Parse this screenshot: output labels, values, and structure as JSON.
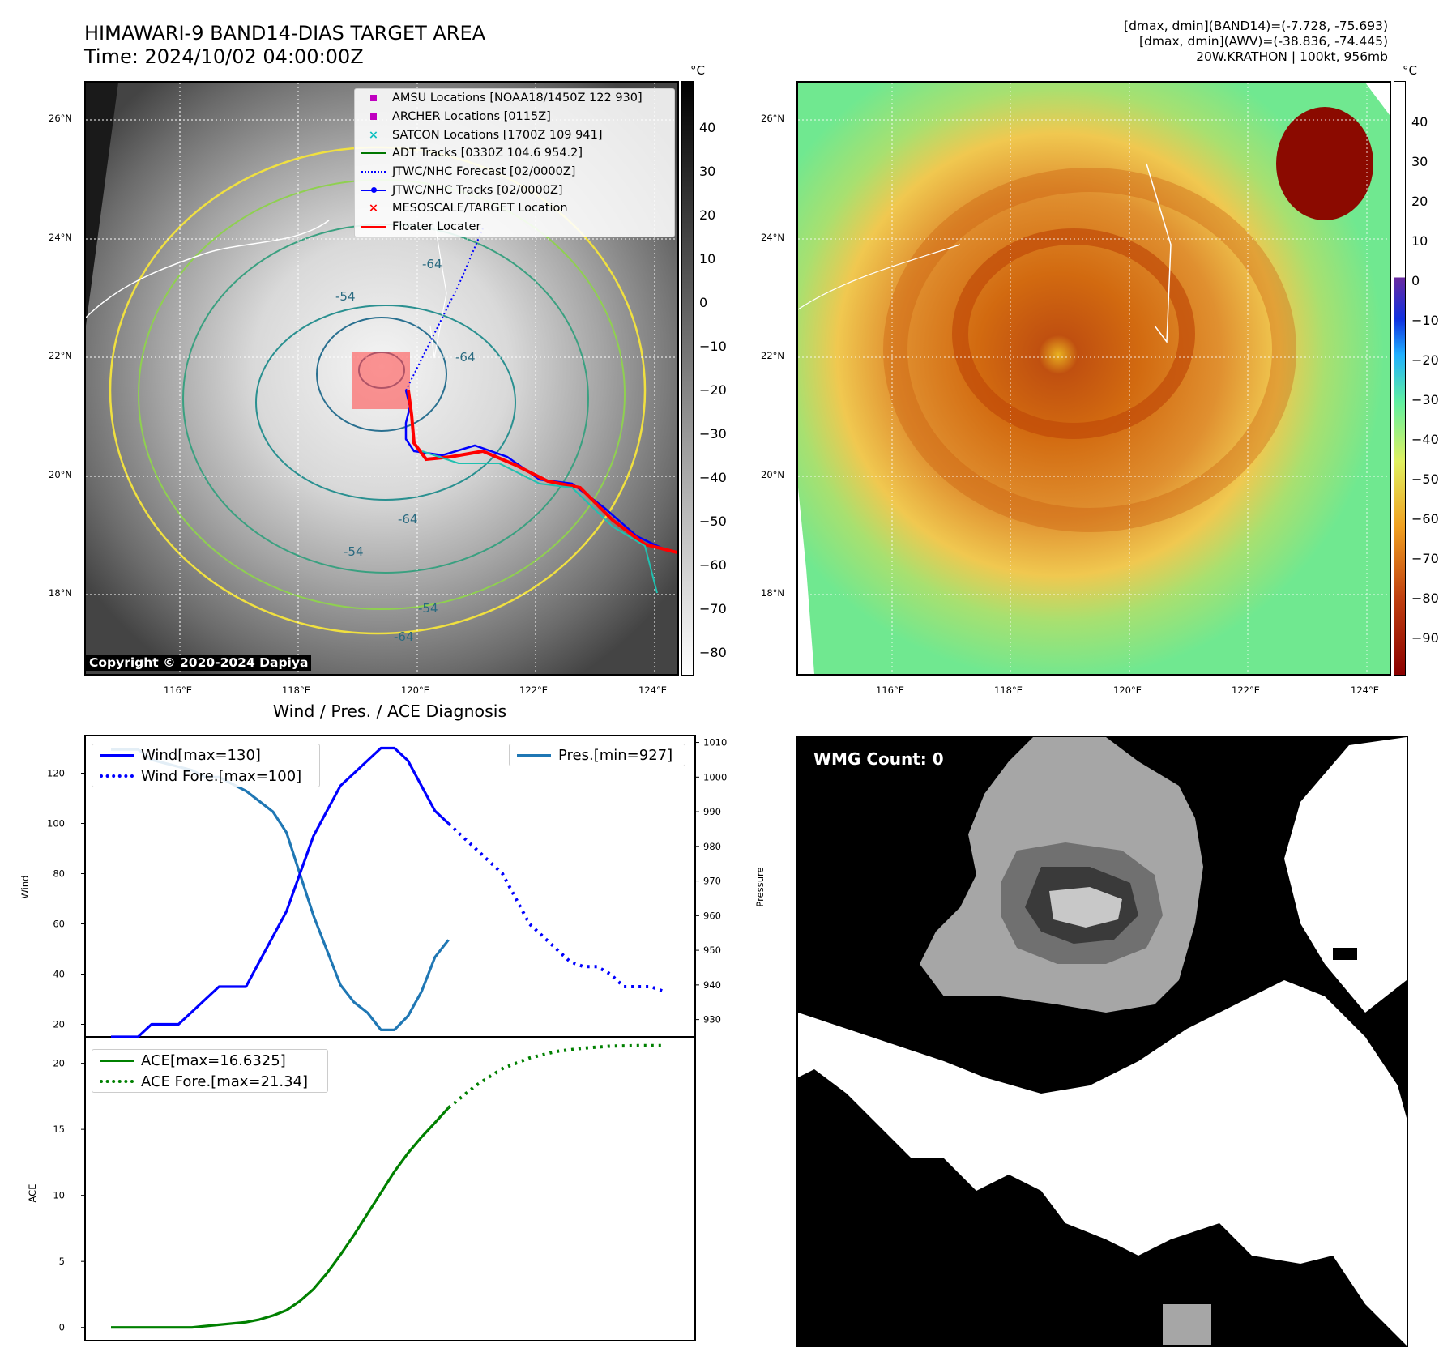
{
  "header": {
    "title_line1": "HIMAWARI-9 BAND14-DIAS TARGET AREA",
    "title_line2": "Time: 2024/10/02 04:00:00Z",
    "info_line1": "[dmax, dmin](BAND14)=(-7.728, -75.693)",
    "info_line2": "[dmax, dmin](AWV)=(-38.836, -74.445)",
    "info_line3": "20W.KRATHON | 100kt, 956mb"
  },
  "map": {
    "lat_labels": [
      "26°N",
      "24°N",
      "22°N",
      "20°N",
      "18°N"
    ],
    "lon_labels": [
      "116°E",
      "118°E",
      "120°E",
      "122°E",
      "124°E"
    ],
    "contour_labels": [
      "-64",
      "-54",
      "-64",
      "-64",
      "-54",
      "-54",
      "-64"
    ],
    "copyright": "Copyright © 2020-2024 Dapiya",
    "legend": [
      {
        "label": "AMSU Locations [NOAA18/1450Z 122 930]",
        "symbol": "square",
        "color": "#c000c0"
      },
      {
        "label": "ARCHER Locations [0115Z]",
        "symbol": "square",
        "color": "#c000c0"
      },
      {
        "label": "SATCON Locations [1700Z 109 941]",
        "symbol": "x",
        "color": "#10c0c0"
      },
      {
        "label": "ADT Tracks [0330Z 104.6 954.2]",
        "symbol": "line",
        "color": "#007700"
      },
      {
        "label": "JTWC/NHC Forecast [02/0000Z]",
        "symbol": "dotted",
        "color": "#0000ff"
      },
      {
        "label": "JTWC/NHC Tracks [02/0000Z]",
        "symbol": "line-dot",
        "color": "#0000ff"
      },
      {
        "label": "MESOSCALE/TARGET Location",
        "symbol": "x",
        "color": "#ff0000"
      },
      {
        "label": "Floater Locater",
        "symbol": "line",
        "color": "#ff0000"
      }
    ],
    "gray_colorbar": {
      "unit": "°C",
      "ticks": [
        "40",
        "30",
        "20",
        "10",
        "0",
        "−10",
        "−20",
        "−30",
        "−40",
        "−50",
        "−60",
        "−70",
        "−80"
      ]
    },
    "color_colorbar": {
      "unit": "°C",
      "ticks": [
        "40",
        "30",
        "20",
        "10",
        "0",
        "−10",
        "−20",
        "−30",
        "−40",
        "−50",
        "−60",
        "−70",
        "−80",
        "−90"
      ]
    }
  },
  "diagnosis": {
    "title": "Wind / Pres. / ACE Diagnosis",
    "wind_ylabel": "Wind",
    "pressure_ylabel": "Pressure",
    "ace_ylabel": "ACE",
    "legend_wind": "Wind[max=130]",
    "legend_wind_fore": "Wind Fore.[max=100]",
    "legend_pres": "Pres.[min=927]",
    "legend_ace": "ACE[max=16.6325]",
    "legend_ace_fore": "ACE Fore.[max=21.34]",
    "wmg_label": "WMG Count: 0"
  },
  "colors": {
    "wind": "#0000ff",
    "pressure": "#1f77b4",
    "ace": "#008000",
    "track_red": "#ff0000"
  },
  "chart_data": [
    {
      "type": "line",
      "title": "Wind / Pres. / ACE Diagnosis",
      "x": [
        0,
        1,
        2,
        3,
        4,
        5,
        6,
        7,
        8,
        9,
        10,
        11,
        12,
        13,
        14,
        15,
        16,
        17,
        18,
        19,
        20,
        21,
        22,
        23,
        24,
        25,
        26,
        27,
        28,
        29,
        30,
        31,
        32,
        33,
        34,
        35,
        36,
        37,
        38,
        39,
        40,
        41
      ],
      "ylabel": "Wind",
      "ylim": [
        15,
        135
      ],
      "yticks": [
        20,
        40,
        60,
        80,
        100,
        120
      ],
      "series": [
        {
          "name": "Wind[max=130]",
          "style": "solid",
          "x": [
            0,
            1,
            2,
            3,
            4,
            5,
            6,
            7,
            8,
            9,
            10,
            11,
            12,
            13,
            14,
            15,
            16,
            17,
            18,
            19,
            20,
            21,
            22,
            23,
            24,
            25
          ],
          "values": [
            15,
            15,
            15,
            20,
            20,
            20,
            25,
            30,
            35,
            35,
            35,
            45,
            55,
            65,
            80,
            95,
            105,
            115,
            120,
            125,
            130,
            130,
            125,
            115,
            105,
            100
          ]
        },
        {
          "name": "Wind Fore.[max=100]",
          "style": "dotted",
          "x": [
            25,
            26,
            27,
            28,
            29,
            30,
            31,
            32,
            33,
            34,
            35,
            36,
            37,
            38,
            39,
            40,
            41
          ],
          "values": [
            100,
            95,
            90,
            85,
            80,
            70,
            60,
            55,
            50,
            45,
            43,
            43,
            40,
            35,
            35,
            35,
            33
          ]
        }
      ]
    },
    {
      "type": "line",
      "ylabel": "Pressure",
      "ylim": [
        925,
        1012
      ],
      "yticks": [
        930,
        940,
        950,
        960,
        970,
        980,
        990,
        1000,
        1010
      ],
      "series": [
        {
          "name": "Pres.[min=927]",
          "style": "solid",
          "x": [
            0,
            1,
            2,
            3,
            4,
            5,
            6,
            7,
            8,
            9,
            10,
            11,
            12,
            13,
            14,
            15,
            16,
            17,
            18,
            19,
            20,
            21,
            22,
            23,
            24,
            25
          ],
          "values": [
            1008,
            1008,
            1008,
            1005,
            1004,
            1003,
            1002,
            1000,
            1000,
            998,
            996,
            993,
            990,
            984,
            972,
            960,
            950,
            940,
            935,
            932,
            927,
            927,
            931,
            938,
            948,
            953
          ]
        }
      ]
    },
    {
      "type": "line",
      "ylabel": "ACE",
      "ylim": [
        -1,
        22
      ],
      "yticks": [
        0,
        5,
        10,
        15,
        20
      ],
      "series": [
        {
          "name": "ACE[max=16.6325]",
          "style": "solid",
          "x": [
            0,
            2,
            4,
            6,
            8,
            10,
            11,
            12,
            13,
            14,
            15,
            16,
            17,
            18,
            19,
            20,
            21,
            22,
            23,
            24,
            25
          ],
          "values": [
            0,
            0,
            0,
            0,
            0.2,
            0.4,
            0.6,
            0.9,
            1.3,
            2.0,
            2.9,
            4.1,
            5.5,
            7.0,
            8.6,
            10.2,
            11.8,
            13.2,
            14.4,
            15.5,
            16.63
          ]
        },
        {
          "name": "ACE Fore.[max=21.34]",
          "style": "dotted",
          "x": [
            25,
            27,
            29,
            31,
            33,
            35,
            37,
            39,
            41
          ],
          "values": [
            16.63,
            18.3,
            19.6,
            20.4,
            20.9,
            21.15,
            21.3,
            21.34,
            21.34
          ]
        }
      ]
    }
  ]
}
